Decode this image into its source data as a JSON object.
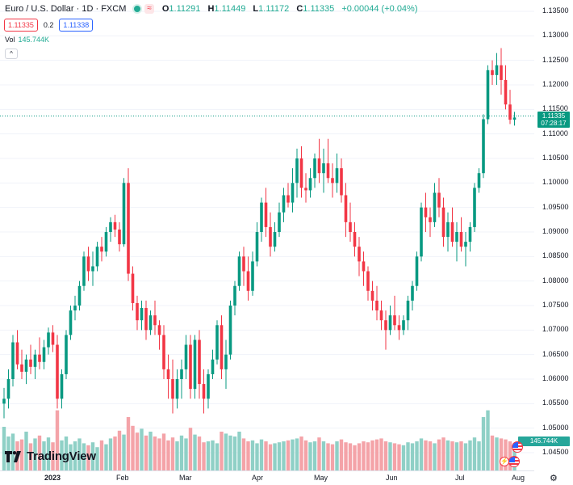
{
  "legend": {
    "symbol": "Euro / U.S. Dollar · 1D · FXCM",
    "status_icon": "market-open-dot",
    "wave_icon": "≈",
    "open_label": "O",
    "open": "1.11291",
    "high_label": "H",
    "high": "1.11449",
    "low_label": "L",
    "low": "1.11172",
    "close_label": "C",
    "close": "1.11335",
    "change": "+0.00044 (+0.04%)"
  },
  "trade": {
    "sell_price": "1.11335",
    "spread": "0.2",
    "buy_price": "1.11338"
  },
  "volume": {
    "label": "Vol",
    "value": "145.744K",
    "axis_tag": "145.744K"
  },
  "collapse_icon": "^",
  "price_axis": {
    "labels": [
      "1.13500",
      "1.13000",
      "1.12500",
      "1.12000",
      "1.11500",
      "1.11000",
      "1.10500",
      "1.10000",
      "1.09500",
      "1.09000",
      "1.08500",
      "1.08000",
      "1.07500",
      "1.07000",
      "1.06500",
      "1.06000",
      "1.05500",
      "1.05000",
      "1.04500"
    ],
    "current_price": "1.11335",
    "countdown": "07:28:17"
  },
  "time_axis": {
    "labels": [
      {
        "text": "2023",
        "bold": true
      },
      {
        "text": "Feb",
        "bold": false
      },
      {
        "text": "Mar",
        "bold": false
      },
      {
        "text": "Apr",
        "bold": false
      },
      {
        "text": "May",
        "bold": false
      },
      {
        "text": "Jun",
        "bold": false
      },
      {
        "text": "Jul",
        "bold": false
      },
      {
        "text": "Aug",
        "bold": false
      }
    ]
  },
  "branding": {
    "logo_text": "TradingView"
  },
  "colors": {
    "up": "#089981",
    "down": "#f23645",
    "vol_up": "#8fd0c6",
    "vol_down": "#f4a3a8",
    "grid": "#f0f3fa",
    "axis_text": "#131722"
  },
  "chart_data": {
    "type": "candlestick",
    "symbol": "EURUSD",
    "timeframe": "1D",
    "price_range": [
      1.0425,
      1.1375
    ],
    "candles": [
      [
        1.055,
        1.0582,
        1.052,
        1.056
      ],
      [
        1.056,
        1.062,
        1.054,
        1.06
      ],
      [
        1.06,
        1.069,
        1.0585,
        1.0675
      ],
      [
        1.0675,
        1.07,
        1.062,
        1.063
      ],
      [
        1.063,
        1.066,
        1.06,
        1.0615
      ],
      [
        1.0615,
        1.065,
        1.059,
        1.064
      ],
      [
        1.064,
        1.067,
        1.061,
        1.0625
      ],
      [
        1.0625,
        1.066,
        1.06,
        1.065
      ],
      [
        1.065,
        1.0685,
        1.062,
        1.0635
      ],
      [
        1.0635,
        1.068,
        1.062,
        1.0665
      ],
      [
        1.0665,
        1.0705,
        1.065,
        1.0695
      ],
      [
        1.0695,
        1.071,
        1.0655,
        1.067
      ],
      [
        1.067,
        1.069,
        1.054,
        1.056
      ],
      [
        1.056,
        1.062,
        1.054,
        1.061
      ],
      [
        1.061,
        1.07,
        1.06,
        1.069
      ],
      [
        1.069,
        1.075,
        1.068,
        1.074
      ],
      [
        1.074,
        1.077,
        1.072,
        1.075
      ],
      [
        1.075,
        1.08,
        1.074,
        1.079
      ],
      [
        1.079,
        1.086,
        1.078,
        1.085
      ],
      [
        1.085,
        1.087,
        1.08,
        1.082
      ],
      [
        1.082,
        1.086,
        1.079,
        1.083
      ],
      [
        1.083,
        1.088,
        1.082,
        1.087
      ],
      [
        1.087,
        1.089,
        1.084,
        1.086
      ],
      [
        1.086,
        1.091,
        1.085,
        1.09
      ],
      [
        1.09,
        1.093,
        1.088,
        1.092
      ],
      [
        1.092,
        1.0935,
        1.089,
        1.0905
      ],
      [
        1.0905,
        1.092,
        1.086,
        1.0875
      ],
      [
        1.0875,
        1.101,
        1.087,
        1.1
      ],
      [
        1.1,
        1.103,
        1.08,
        1.0815
      ],
      [
        1.0815,
        1.083,
        1.074,
        1.0755
      ],
      [
        1.0755,
        1.077,
        1.07,
        1.072
      ],
      [
        1.072,
        1.076,
        1.07,
        1.0745
      ],
      [
        1.0745,
        1.076,
        1.068,
        1.07
      ],
      [
        1.07,
        1.074,
        1.069,
        1.073
      ],
      [
        1.073,
        1.076,
        1.069,
        1.071
      ],
      [
        1.071,
        1.072,
        1.066,
        1.069
      ],
      [
        1.069,
        1.071,
        1.06,
        1.062
      ],
      [
        1.062,
        1.065,
        1.056,
        1.06
      ],
      [
        1.06,
        1.064,
        1.053,
        1.056
      ],
      [
        1.056,
        1.062,
        1.054,
        1.06
      ],
      [
        1.06,
        1.064,
        1.056,
        1.062
      ],
      [
        1.062,
        1.069,
        1.06,
        1.067
      ],
      [
        1.067,
        1.069,
        1.056,
        1.058
      ],
      [
        1.058,
        1.069,
        1.056,
        1.068
      ],
      [
        1.068,
        1.07,
        1.056,
        1.059
      ],
      [
        1.059,
        1.062,
        1.053,
        1.056
      ],
      [
        1.056,
        1.062,
        1.054,
        1.061
      ],
      [
        1.061,
        1.066,
        1.06,
        1.064
      ],
      [
        1.064,
        1.072,
        1.063,
        1.071
      ],
      [
        1.071,
        1.073,
        1.06,
        1.062
      ],
      [
        1.062,
        1.068,
        1.058,
        1.065
      ],
      [
        1.065,
        1.076,
        1.064,
        1.075
      ],
      [
        1.075,
        1.08,
        1.073,
        1.079
      ],
      [
        1.079,
        1.086,
        1.078,
        1.085
      ],
      [
        1.085,
        1.087,
        1.079,
        1.082
      ],
      [
        1.082,
        1.085,
        1.076,
        1.078
      ],
      [
        1.078,
        1.086,
        1.077,
        1.084
      ],
      [
        1.084,
        1.092,
        1.083,
        1.09
      ],
      [
        1.09,
        1.097,
        1.088,
        1.096
      ],
      [
        1.096,
        1.099,
        1.089,
        1.091
      ],
      [
        1.091,
        1.094,
        1.085,
        1.087
      ],
      [
        1.087,
        1.092,
        1.086,
        1.09
      ],
      [
        1.09,
        1.096,
        1.089,
        1.094
      ],
      [
        1.094,
        1.099,
        1.092,
        1.0975
      ],
      [
        1.0975,
        1.1,
        1.095,
        1.096
      ],
      [
        1.096,
        1.103,
        1.094,
        1.1
      ],
      [
        1.1,
        1.107,
        1.097,
        1.105
      ],
      [
        1.105,
        1.1075,
        1.097,
        1.099
      ],
      [
        1.099,
        1.102,
        1.096,
        1.0985
      ],
      [
        1.0985,
        1.103,
        1.097,
        1.101
      ],
      [
        1.101,
        1.106,
        1.099,
        1.105
      ],
      [
        1.105,
        1.109,
        1.1,
        1.102
      ],
      [
        1.102,
        1.107,
        1.098,
        1.104
      ],
      [
        1.104,
        1.109,
        1.1,
        1.101
      ],
      [
        1.101,
        1.104,
        1.097,
        1.1
      ],
      [
        1.1,
        1.106,
        1.098,
        1.103
      ],
      [
        1.103,
        1.105,
        1.096,
        1.0975
      ],
      [
        1.0975,
        1.1,
        1.089,
        1.092
      ],
      [
        1.092,
        1.096,
        1.088,
        1.09
      ],
      [
        1.09,
        1.092,
        1.085,
        1.087
      ],
      [
        1.087,
        1.089,
        1.081,
        1.084
      ],
      [
        1.084,
        1.086,
        1.079,
        1.082
      ],
      [
        1.082,
        1.083,
        1.076,
        1.078
      ],
      [
        1.078,
        1.08,
        1.074,
        1.076
      ],
      [
        1.076,
        1.079,
        1.072,
        1.074
      ],
      [
        1.074,
        1.076,
        1.07,
        1.072
      ],
      [
        1.072,
        1.074,
        1.066,
        1.07
      ],
      [
        1.07,
        1.075,
        1.069,
        1.073
      ],
      [
        1.073,
        1.077,
        1.07,
        1.071
      ],
      [
        1.071,
        1.073,
        1.068,
        1.07
      ],
      [
        1.07,
        1.073,
        1.069,
        1.072
      ],
      [
        1.072,
        1.077,
        1.07,
        1.076
      ],
      [
        1.076,
        1.08,
        1.074,
        1.079
      ],
      [
        1.079,
        1.086,
        1.078,
        1.085
      ],
      [
        1.085,
        1.096,
        1.084,
        1.095
      ],
      [
        1.095,
        1.098,
        1.09,
        1.093
      ],
      [
        1.093,
        1.095,
        1.089,
        1.092
      ],
      [
        1.092,
        1.1,
        1.091,
        1.098
      ],
      [
        1.098,
        1.101,
        1.093,
        1.095
      ],
      [
        1.095,
        1.097,
        1.087,
        1.089
      ],
      [
        1.089,
        1.094,
        1.086,
        1.092
      ],
      [
        1.092,
        1.095,
        1.087,
        1.088
      ],
      [
        1.088,
        1.092,
        1.084,
        1.09
      ],
      [
        1.09,
        1.093,
        1.086,
        1.087
      ],
      [
        1.087,
        1.09,
        1.083,
        1.088
      ],
      [
        1.088,
        1.092,
        1.086,
        1.091
      ],
      [
        1.091,
        1.1,
        1.09,
        1.099
      ],
      [
        1.099,
        1.103,
        1.098,
        1.102
      ],
      [
        1.102,
        1.114,
        1.101,
        1.113
      ],
      [
        1.113,
        1.124,
        1.112,
        1.123
      ],
      [
        1.123,
        1.125,
        1.12,
        1.122
      ],
      [
        1.122,
        1.1265,
        1.12,
        1.124
      ],
      [
        1.124,
        1.1275,
        1.118,
        1.121
      ],
      [
        1.121,
        1.124,
        1.115,
        1.116
      ],
      [
        1.116,
        1.119,
        1.112,
        1.1129
      ],
      [
        1.1129,
        1.1145,
        1.1117,
        1.11335
      ]
    ],
    "volumes": [
      0.45,
      0.35,
      0.38,
      0.3,
      0.32,
      0.4,
      0.28,
      0.33,
      0.36,
      0.3,
      0.34,
      0.29,
      0.62,
      0.31,
      0.35,
      0.27,
      0.3,
      0.33,
      0.28,
      0.26,
      0.29,
      0.24,
      0.31,
      0.27,
      0.33,
      0.35,
      0.41,
      0.37,
      0.55,
      0.46,
      0.39,
      0.43,
      0.36,
      0.4,
      0.35,
      0.33,
      0.38,
      0.31,
      0.34,
      0.3,
      0.36,
      0.33,
      0.44,
      0.37,
      0.35,
      0.29,
      0.3,
      0.31,
      0.28,
      0.4,
      0.38,
      0.36,
      0.35,
      0.4,
      0.33,
      0.3,
      0.31,
      0.28,
      0.32,
      0.3,
      0.27,
      0.28,
      0.29,
      0.3,
      0.31,
      0.32,
      0.33,
      0.35,
      0.31,
      0.29,
      0.3,
      0.34,
      0.3,
      0.28,
      0.27,
      0.3,
      0.32,
      0.29,
      0.28,
      0.26,
      0.28,
      0.3,
      0.29,
      0.31,
      0.32,
      0.33,
      0.3,
      0.29,
      0.28,
      0.27,
      0.26,
      0.29,
      0.28,
      0.3,
      0.33,
      0.31,
      0.3,
      0.28,
      0.32,
      0.34,
      0.31,
      0.3,
      0.29,
      0.3,
      0.28,
      0.31,
      0.34,
      0.3,
      0.55,
      0.62,
      0.36,
      0.34,
      0.33,
      0.32,
      0.3,
      0.24
    ]
  }
}
